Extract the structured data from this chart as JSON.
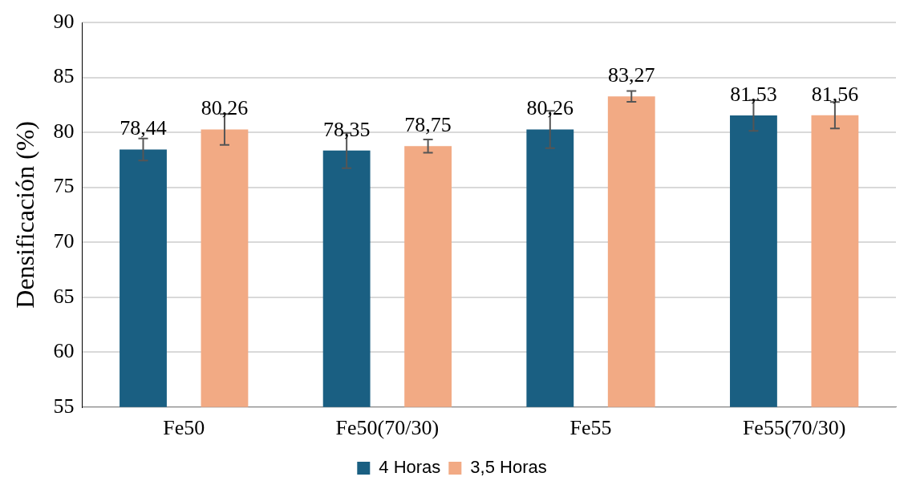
{
  "chart_data": {
    "type": "bar",
    "ylabel": "Densificación (%)",
    "categories": [
      "Fe50",
      "Fe50(70/30)",
      "Fe55",
      "Fe55(70/30)"
    ],
    "series": [
      {
        "name": "4 Horas",
        "color": "#1a5f82",
        "values": [
          78.44,
          78.35,
          80.26,
          81.53
        ],
        "errors": [
          1.0,
          1.6,
          1.7,
          1.4
        ],
        "value_labels": [
          "78,44",
          "78,35",
          "80,26",
          "81,53"
        ]
      },
      {
        "name": "3,5 Horas",
        "color": "#f2aa84",
        "values": [
          80.26,
          78.75,
          83.27,
          81.56
        ],
        "errors": [
          1.4,
          0.6,
          0.5,
          1.2
        ],
        "value_labels": [
          "80,26",
          "78,75",
          "83,27",
          "81,56"
        ]
      }
    ],
    "ylim": [
      55,
      90
    ],
    "yticks": [
      55,
      60,
      65,
      70,
      75,
      80,
      85,
      90
    ],
    "grid": "y",
    "legend": "bottom"
  }
}
